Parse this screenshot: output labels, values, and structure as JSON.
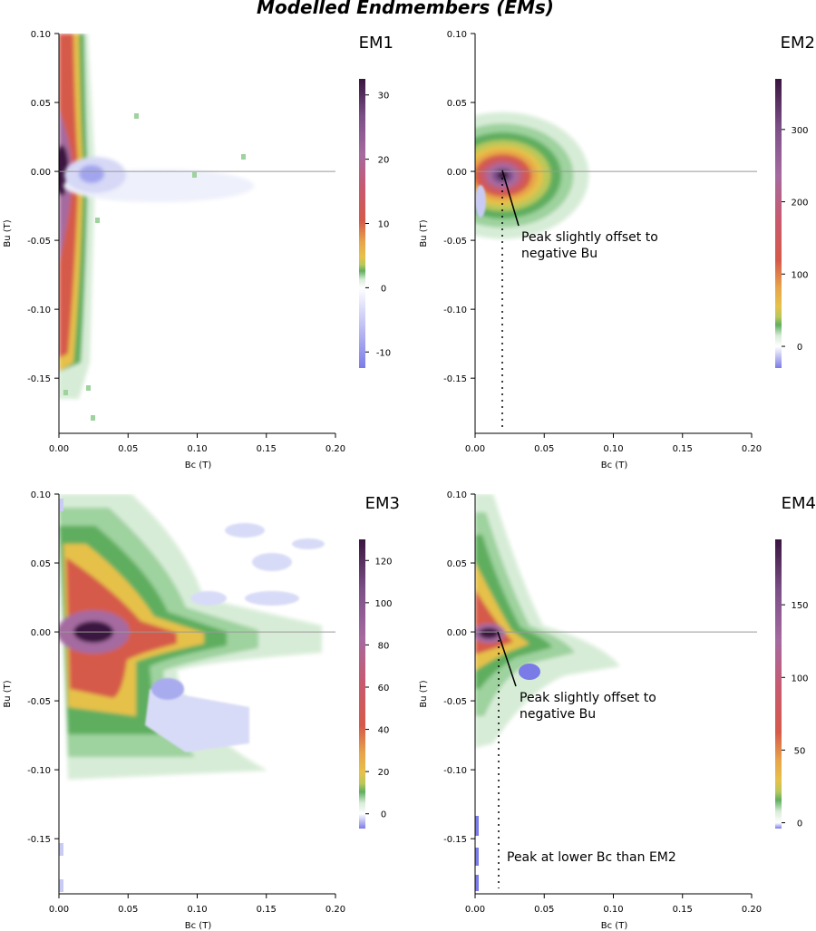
{
  "title": "Modelled Endmembers (EMs)",
  "colors": {
    "negative": "#7b7be8",
    "ramp": [
      "#ffffff",
      "#d7ecd7",
      "#9ed29e",
      "#5fae5f",
      "#b9c85a",
      "#e6c14a",
      "#e7a54a",
      "#d65a4a",
      "#c75a70",
      "#a56aa0",
      "#7c4f88",
      "#3a1540"
    ],
    "zero_line": "#999999"
  },
  "chart_data": [
    {
      "type": "heatmap",
      "label": "EM1",
      "xlabel": "Bc (T)",
      "ylabel": "Bu (T)",
      "xlim": [
        0,
        0.2
      ],
      "ylim": [
        -0.19,
        0.1
      ],
      "xticks": [
        "0.00",
        "0.05",
        "0.10",
        "0.15",
        "0.20"
      ],
      "yticks": [
        "0.10",
        "0.05",
        "0.00",
        "-0.05",
        "-0.10",
        "-0.15"
      ],
      "colorbar": {
        "min": -12.5,
        "max": 32.5,
        "ticks": [
          "30",
          "20",
          "10",
          "0",
          "-10"
        ]
      },
      "annotations": []
    },
    {
      "type": "heatmap",
      "label": "EM2",
      "xlabel": "Bc (T)",
      "ylabel": "Bu (T)",
      "xlim": [
        0,
        0.2
      ],
      "ylim": [
        -0.19,
        0.1
      ],
      "xticks": [
        "0.00",
        "0.05",
        "0.10",
        "0.15",
        "0.20"
      ],
      "yticks": [
        "0.10",
        "0.05",
        "0.00",
        "-0.05",
        "-0.10",
        "-0.15"
      ],
      "colorbar": {
        "min": -30,
        "max": 370,
        "ticks": [
          "300",
          "200",
          "100",
          "0"
        ]
      },
      "annotations": [
        {
          "lines": [
            "Peak slightly offset to",
            "negative Bu"
          ]
        }
      ]
    },
    {
      "type": "heatmap",
      "label": "EM3",
      "xlabel": "Bc (T)",
      "ylabel": "Bu (T)",
      "xlim": [
        0,
        0.2
      ],
      "ylim": [
        -0.19,
        0.1
      ],
      "xticks": [
        "0.00",
        "0.05",
        "0.10",
        "0.15",
        "0.20"
      ],
      "yticks": [
        "0.10",
        "0.05",
        "0.00",
        "-0.05",
        "-0.10",
        "-0.15"
      ],
      "colorbar": {
        "min": -7,
        "max": 130,
        "ticks": [
          "120",
          "100",
          "80",
          "60",
          "40",
          "20",
          "0"
        ]
      },
      "annotations": []
    },
    {
      "type": "heatmap",
      "label": "EM4",
      "xlabel": "Bc (T)",
      "ylabel": "Bu (T)",
      "xlim": [
        0,
        0.2
      ],
      "ylim": [
        -0.19,
        0.1
      ],
      "xticks": [
        "0.00",
        "0.05",
        "0.10",
        "0.15",
        "0.20"
      ],
      "yticks": [
        "0.10",
        "0.05",
        "0.00",
        "-0.05",
        "-0.10",
        "-0.15"
      ],
      "colorbar": {
        "min": -4,
        "max": 195,
        "ticks": [
          "150",
          "100",
          "50",
          "0"
        ]
      },
      "annotations": [
        {
          "lines": [
            "Peak slightly offset to",
            "negative Bu"
          ]
        },
        {
          "lines": [
            "Peak at lower Bc than EM2"
          ]
        }
      ]
    }
  ]
}
